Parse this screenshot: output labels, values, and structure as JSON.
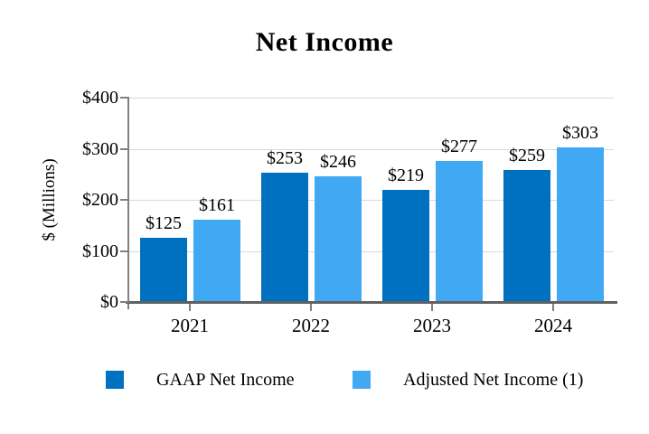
{
  "chart_data": {
    "type": "bar",
    "title": "Net Income",
    "xlabel": "",
    "ylabel": "$ (Millions)",
    "ylim": [
      0,
      400
    ],
    "ytick_step": 100,
    "ytick_labels": [
      "$0",
      "$100",
      "$200",
      "$300",
      "$400"
    ],
    "categories": [
      "2021",
      "2022",
      "2023",
      "2024"
    ],
    "series": [
      {
        "name": "GAAP Net Income",
        "color": "#0070C0",
        "values": [
          125,
          253,
          219,
          259
        ],
        "data_labels": [
          "$125",
          "$253",
          "$219",
          "$259"
        ]
      },
      {
        "name": "Adjusted Net Income (1)",
        "color": "#41A9F4",
        "values": [
          161,
          246,
          277,
          303
        ],
        "data_labels": [
          "$161",
          "$246",
          "$277",
          "$303"
        ]
      }
    ],
    "grid": true,
    "legend_position": "bottom",
    "colors": {
      "background": "#FFFFFF",
      "gridline": "#D9D9D9",
      "axis": "#808080",
      "baseline": "#606060",
      "text": "#000000"
    }
  }
}
